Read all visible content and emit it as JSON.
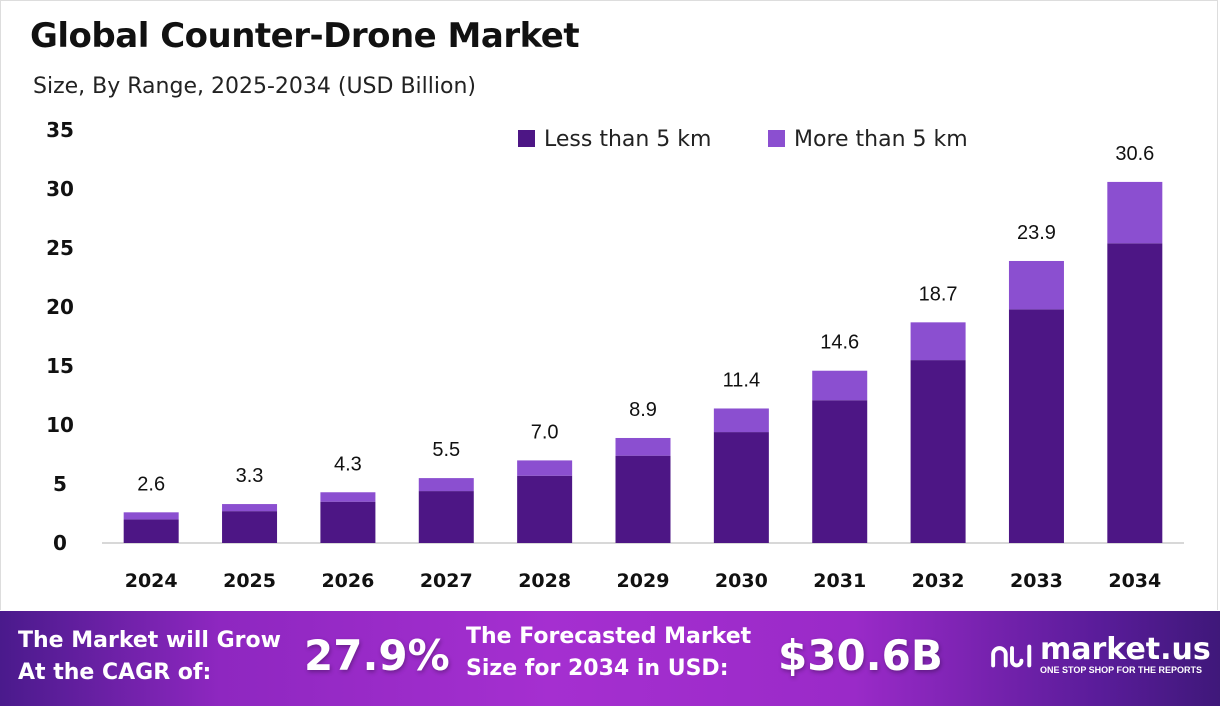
{
  "header": {
    "title": "Global Counter-Drone Market",
    "subtitle": "Size, By Range, 2025-2034 (USD Billion)"
  },
  "chart_data": {
    "type": "bar",
    "stacked": true,
    "categories": [
      "2024",
      "2025",
      "2026",
      "2027",
      "2028",
      "2029",
      "2030",
      "2031",
      "2032",
      "2033",
      "2034"
    ],
    "series": [
      {
        "name": "Less than 5 km",
        "color": "#4d1685",
        "values": [
          2.0,
          2.7,
          3.5,
          4.4,
          5.7,
          7.4,
          9.4,
          12.1,
          15.5,
          19.8,
          25.4
        ]
      },
      {
        "name": "More than 5 km",
        "color": "#8b4fd0",
        "values": [
          0.6,
          0.6,
          0.8,
          1.1,
          1.3,
          1.5,
          2.0,
          2.5,
          3.2,
          4.1,
          5.2
        ]
      }
    ],
    "totals": [
      "2.6",
      "3.3",
      "4.3",
      "5.5",
      "7.0",
      "8.9",
      "11.4",
      "14.6",
      "18.7",
      "23.9",
      "30.6"
    ],
    "ylim": [
      0,
      35
    ],
    "yticks": [
      "0",
      "5",
      "10",
      "15",
      "20",
      "25",
      "30",
      "35"
    ],
    "grid": false,
    "legend": "top-right",
    "xlabel": "",
    "ylabel": ""
  },
  "banner": {
    "cagr_label_1": "The Market will Grow",
    "cagr_label_2": "At the CAGR of:",
    "cagr_value": "27.9%",
    "forecast_label_1": "The Forecasted Market",
    "forecast_label_2": "Size for 2034 in USD:",
    "forecast_value": "$30.6B",
    "logo_name": "market.us",
    "logo_tagline": "ONE STOP SHOP FOR THE REPORTS"
  }
}
